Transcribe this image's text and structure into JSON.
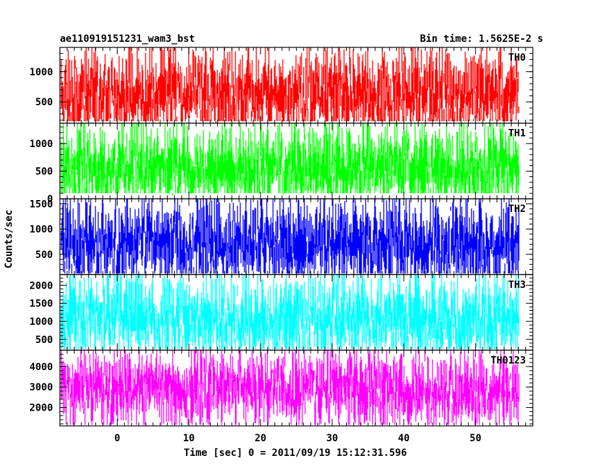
{
  "header": {
    "title": "ae110919151231_wam3_bst",
    "bin_time": "Bin time: 1.5625E-2 s"
  },
  "chart_data": {
    "type": "line",
    "xlabel": "Time [sec] 0 = 2011/09/19 15:12:31.596",
    "ylabel": "Counts/sec",
    "xlim": [
      -8,
      58
    ],
    "x_data_range": [
      -7.9,
      56.1
    ],
    "x_ticks": [
      0,
      10,
      20,
      30,
      40,
      50
    ],
    "grid": false,
    "panels": [
      {
        "name": "TH0",
        "color": "#ff0000",
        "ylim": [
          150,
          1400
        ],
        "y_ticks": [
          500,
          1000
        ],
        "y_tick_labels": [
          "500",
          "1000"
        ],
        "approx_min": 180,
        "approx_mean": 600,
        "approx_max": 1400
      },
      {
        "name": "TH1",
        "color": "#00ff00",
        "ylim": [
          0,
          1370
        ],
        "y_ticks": [
          0,
          500,
          1000
        ],
        "y_tick_labels": [
          "0",
          "500",
          "1000"
        ],
        "approx_min": 100,
        "approx_mean": 550,
        "approx_max": 1370
      },
      {
        "name": "TH2",
        "color": "#0000ff",
        "ylim": [
          100,
          1600
        ],
        "y_ticks": [
          500,
          1000,
          1500
        ],
        "y_tick_labels": [
          "500",
          "1000",
          "1500"
        ],
        "approx_min": 120,
        "approx_mean": 700,
        "approx_max": 1600
      },
      {
        "name": "TH3",
        "color": "#00ffff",
        "ylim": [
          200,
          2300
        ],
        "y_ticks": [
          500,
          1000,
          1500,
          2000
        ],
        "y_tick_labels": [
          "500",
          "1000",
          "1500",
          "2000"
        ],
        "approx_min": 230,
        "approx_mean": 1050,
        "approx_max": 2300
      },
      {
        "name": "TH0123",
        "color": "#ff00ff",
        "ylim": [
          1100,
          4800
        ],
        "y_ticks": [
          2000,
          3000,
          4000
        ],
        "y_tick_labels": [
          "2000",
          "3000",
          "4000"
        ],
        "approx_min": 1150,
        "approx_mean": 2900,
        "approx_max": 4800
      }
    ]
  }
}
